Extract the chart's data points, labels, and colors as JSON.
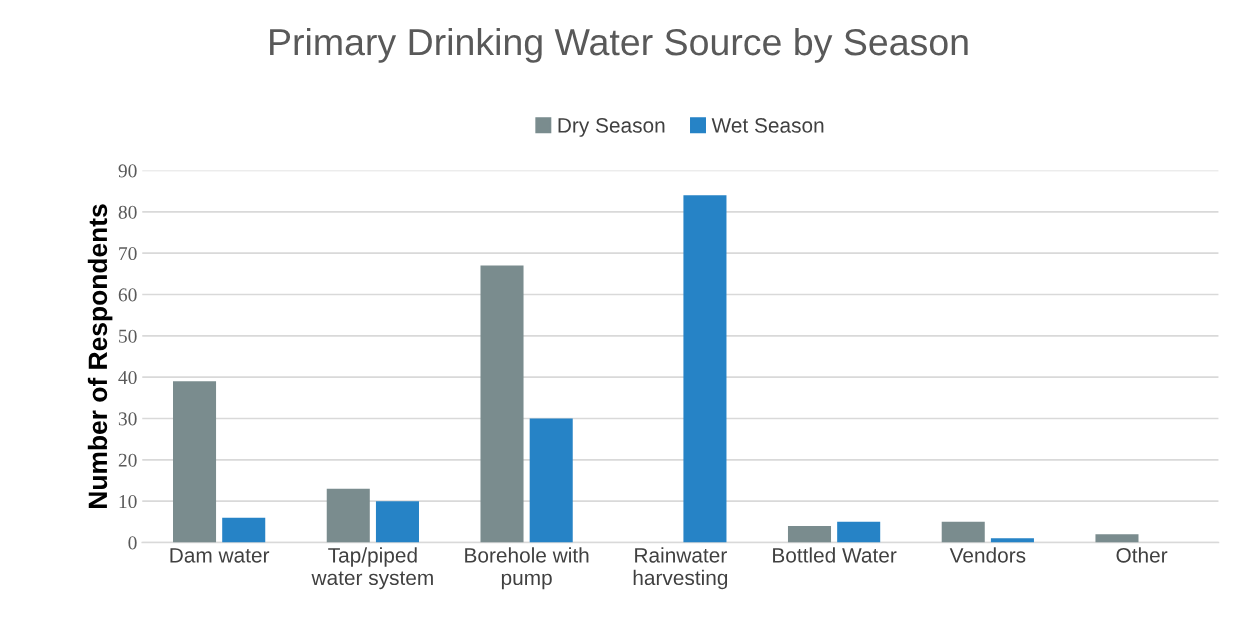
{
  "chart_data": {
    "type": "bar",
    "title": "Primary Drinking Water Source by Season",
    "ylabel": "Number of Respondents",
    "categories": [
      "Dam water",
      "Tap/piped\nwater system",
      "Borehole with\npump",
      "Rainwater\nharvesting",
      "Bottled Water",
      "Vendors",
      "Other"
    ],
    "series": [
      {
        "name": "Dry Season",
        "color": "#7a8c8e",
        "values": [
          39,
          13,
          67,
          0,
          4,
          5,
          2
        ]
      },
      {
        "name": "Wet Season",
        "color": "#2683c6",
        "values": [
          6,
          10,
          30,
          84,
          5,
          1,
          0
        ]
      }
    ],
    "ylim": [
      0,
      90
    ],
    "yticks": [
      0,
      10,
      20,
      30,
      40,
      50,
      60,
      70,
      80,
      90
    ],
    "grid": "y",
    "legend": "top"
  }
}
